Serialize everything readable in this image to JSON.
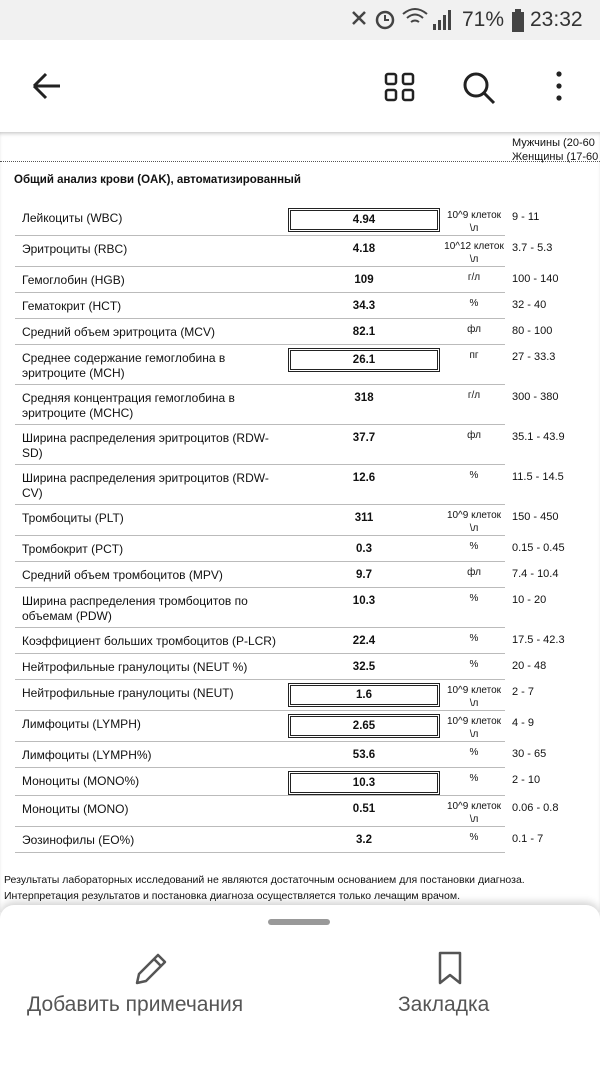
{
  "status_bar": {
    "battery": "71%",
    "time": "23:32"
  },
  "document": {
    "header_partial": [
      "Мужчины (20-60",
      "Женщины (17-60"
    ],
    "section_title": "Общий анализ крови (OAK), автоматизированный",
    "rows": [
      {
        "name": "Лейкоциты (WBC)",
        "value": "4.94",
        "unit": "10^9 клеток\\л",
        "range": "9 - 11",
        "boxed": true
      },
      {
        "name": "Эритроциты (RBC)",
        "value": "4.18",
        "unit": "10^12 клеток\\л",
        "range": "3.7 - 5.3",
        "boxed": false
      },
      {
        "name": "Гемоглобин (HGB)",
        "value": "109",
        "unit": "г/л",
        "range": "100 - 140",
        "boxed": false
      },
      {
        "name": "Гематокрит (HCT)",
        "value": "34.3",
        "unit": "%",
        "range": "32 - 40",
        "boxed": false
      },
      {
        "name": "Средний объем эритроцита (MCV)",
        "value": "82.1",
        "unit": "фл",
        "range": "80 - 100",
        "boxed": false
      },
      {
        "name": "Среднее содержание гемоглобина в эритроците (MCH)",
        "value": "26.1",
        "unit": "пг",
        "range": "27 - 33.3",
        "boxed": true
      },
      {
        "name": "Средняя концентрация гемоглобина в эритроците (MCHC)",
        "value": "318",
        "unit": "г/л",
        "range": "300 - 380",
        "boxed": false
      },
      {
        "name": "Ширина распределения эритроцитов (RDW-SD)",
        "value": "37.7",
        "unit": "фл",
        "range": "35.1 - 43.9",
        "boxed": false
      },
      {
        "name": "Ширина распределения эритроцитов (RDW-CV)",
        "value": "12.6",
        "unit": "%",
        "range": "11.5 - 14.5",
        "boxed": false
      },
      {
        "name": "Тромбоциты (PLT)",
        "value": "311",
        "unit": "10^9 клеток\\л",
        "range": "150 - 450",
        "boxed": false
      },
      {
        "name": "Тромбокрит (PCT)",
        "value": "0.3",
        "unit": "%",
        "range": "0.15 - 0.45",
        "boxed": false
      },
      {
        "name": "Средний объем тромбоцитов (MPV)",
        "value": "9.7",
        "unit": "фл",
        "range": "7.4 - 10.4",
        "boxed": false
      },
      {
        "name": "Ширина распределения тромбоцитов по объемам (PDW)",
        "value": "10.3",
        "unit": "%",
        "range": "10 - 20",
        "boxed": false
      },
      {
        "name": "Коэффициент больших тромбоцитов (P-LCR)",
        "value": "22.4",
        "unit": "%",
        "range": "17.5 - 42.3",
        "boxed": false
      },
      {
        "name": "Нейтрофильные гранулоциты (NEUT %)",
        "value": "32.5",
        "unit": "%",
        "range": "20 - 48",
        "boxed": false
      },
      {
        "name": "Нейтрофильные гранулоциты (NEUT)",
        "value": "1.6",
        "unit": "10^9 клеток\\л",
        "range": "2 - 7",
        "boxed": true
      },
      {
        "name": "Лимфоциты (LYMPH)",
        "value": "2.65",
        "unit": "10^9 клеток\\л",
        "range": "4 - 9",
        "boxed": true
      },
      {
        "name": "Лимфоциты (LYMPH%)",
        "value": "53.6",
        "unit": "%",
        "range": "30 - 65",
        "boxed": false
      },
      {
        "name": "Моноциты (MONO%)",
        "value": "10.3",
        "unit": "%",
        "range": "2 - 10",
        "boxed": true
      },
      {
        "name": "Моноциты (MONO)",
        "value": "0.51",
        "unit": "10^9 клеток\\л",
        "range": "0.06 - 0.8",
        "boxed": false
      },
      {
        "name": "Эозинофилы (EO%)",
        "value": "3.2",
        "unit": "%",
        "range": "0.1 - 7",
        "boxed": false
      }
    ],
    "footer": [
      "Результаты лабораторных исследований не являются достаточным основанием для постановки диагноза.",
      "Интерпретация результатов и постановка диагноза осуществляется только лечащим врачом."
    ]
  },
  "bottom_sheet": {
    "add_note": "Добавить примечания",
    "bookmark": "Закладка"
  }
}
